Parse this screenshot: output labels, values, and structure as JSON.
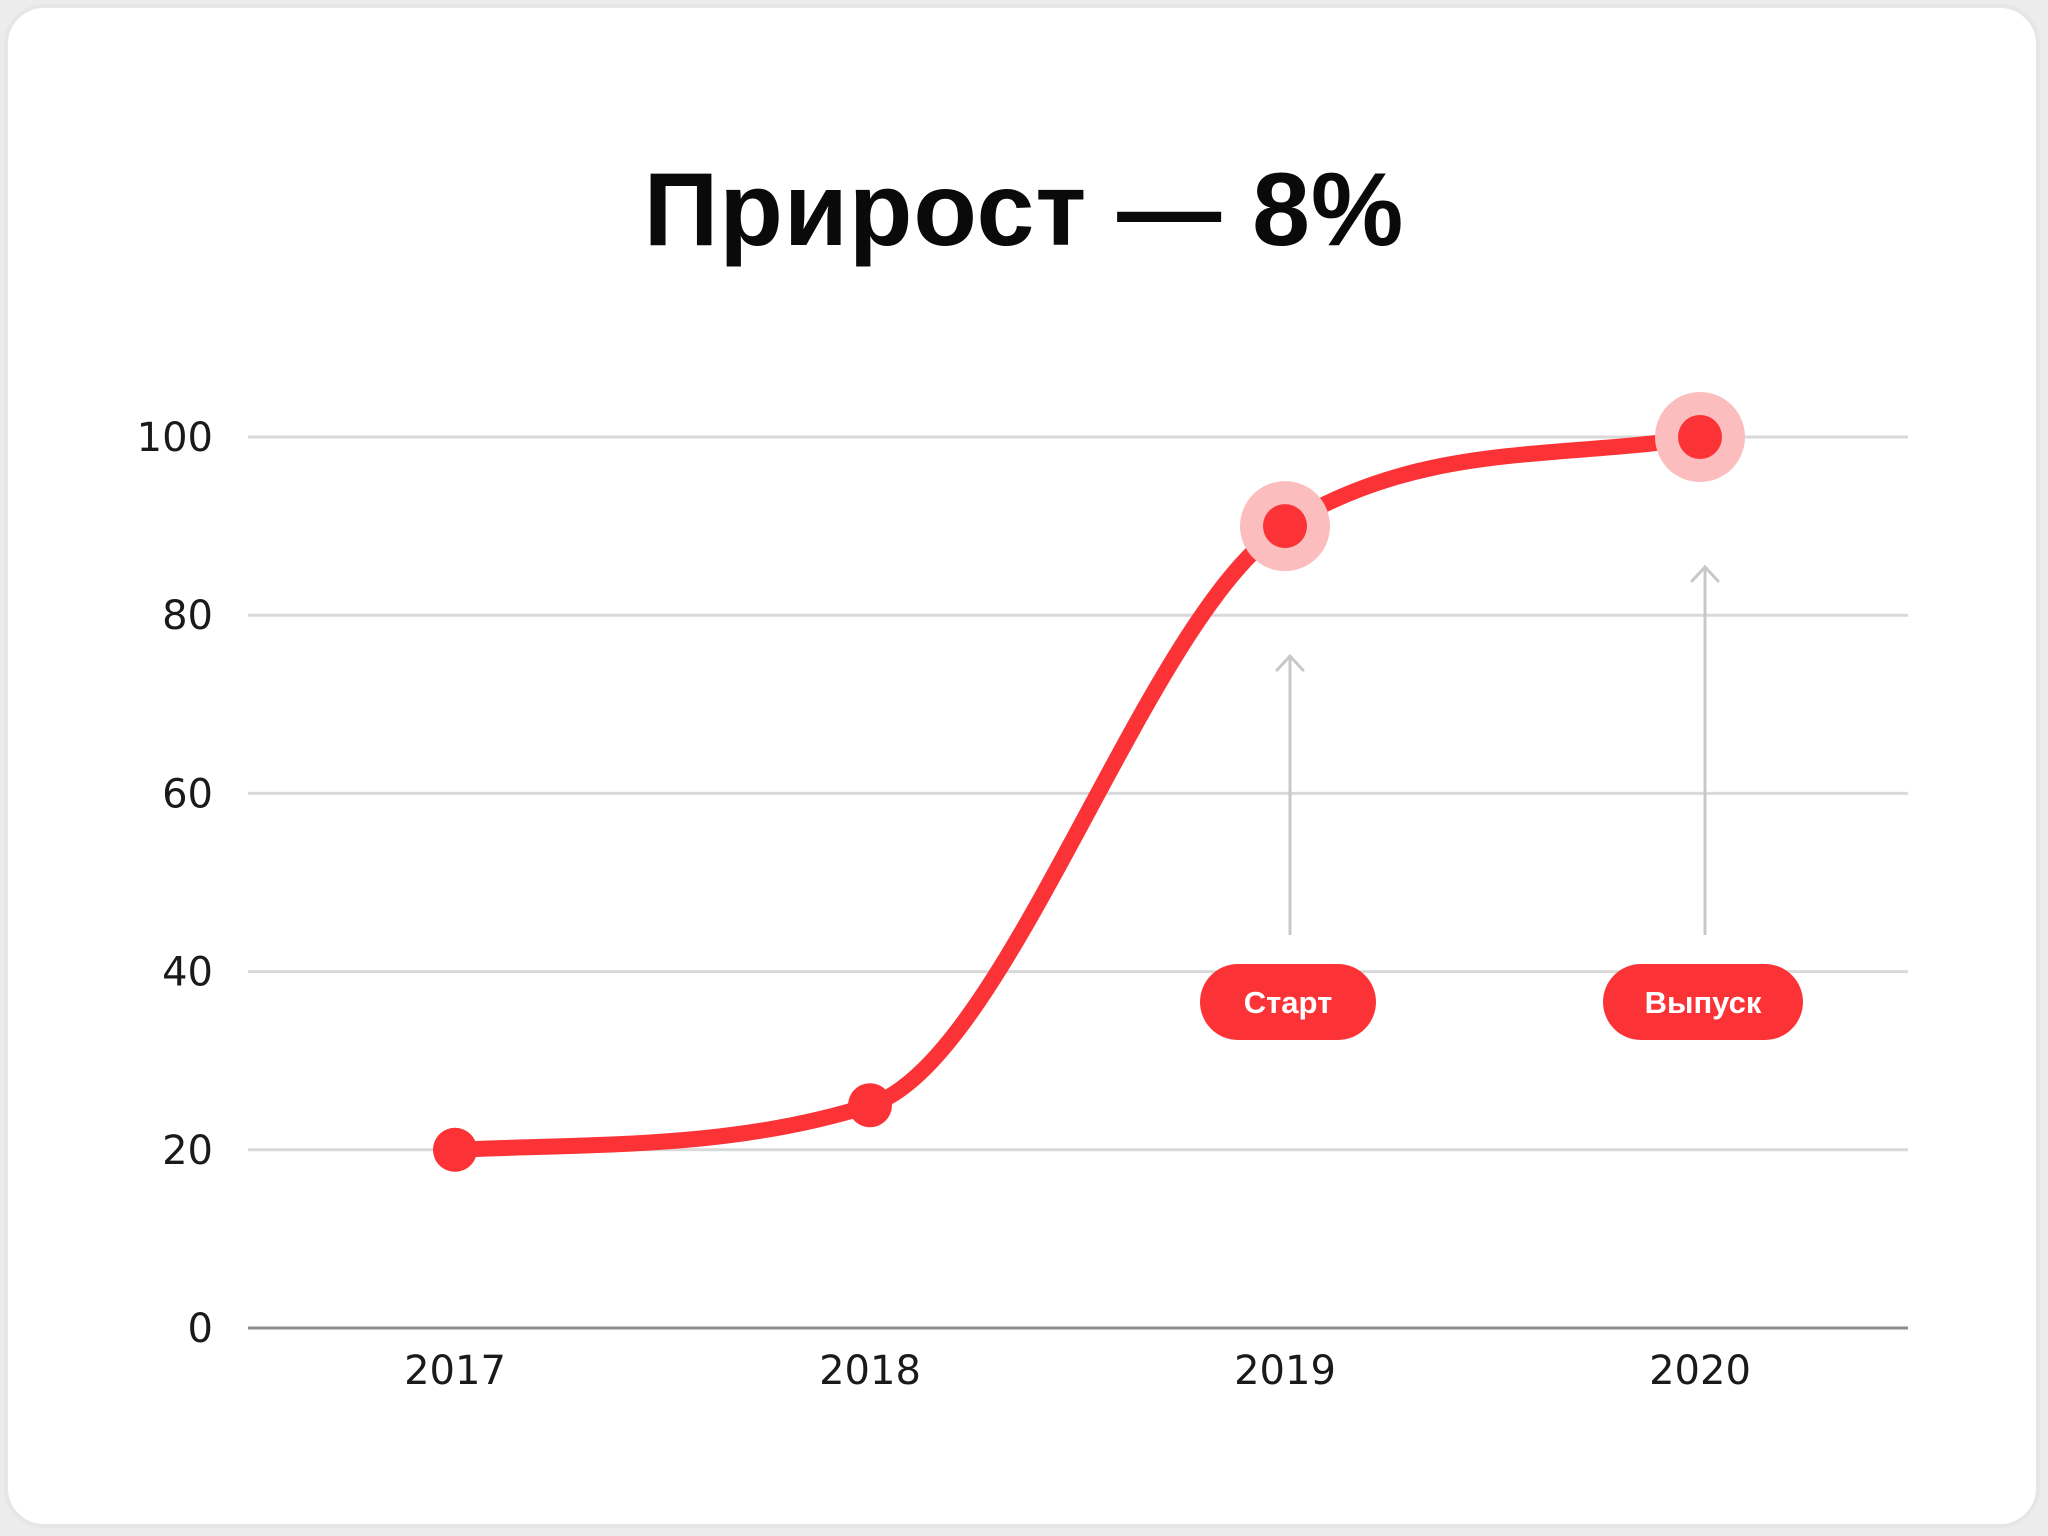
{
  "title": "Прирост — 8%",
  "colors": {
    "accent": "#fb3336",
    "halo": "#fbbdbe",
    "grid": "#d9d9d9",
    "axis": "#8c8c8c",
    "arrow": "#c8c8c8"
  },
  "chart_data": {
    "type": "line",
    "title": "Прирост — 8%",
    "xlabel": "",
    "ylabel": "",
    "categories": [
      "2017",
      "2018",
      "2019",
      "2020"
    ],
    "values": [
      20,
      25,
      90,
      100
    ],
    "ylim": [
      0,
      100
    ],
    "yticks": [
      0,
      20,
      40,
      60,
      80,
      100
    ],
    "grid": true,
    "smooth": true,
    "annotations": [
      {
        "category": "2019",
        "label": "Старт"
      },
      {
        "category": "2020",
        "label": "Выпуск"
      }
    ]
  }
}
